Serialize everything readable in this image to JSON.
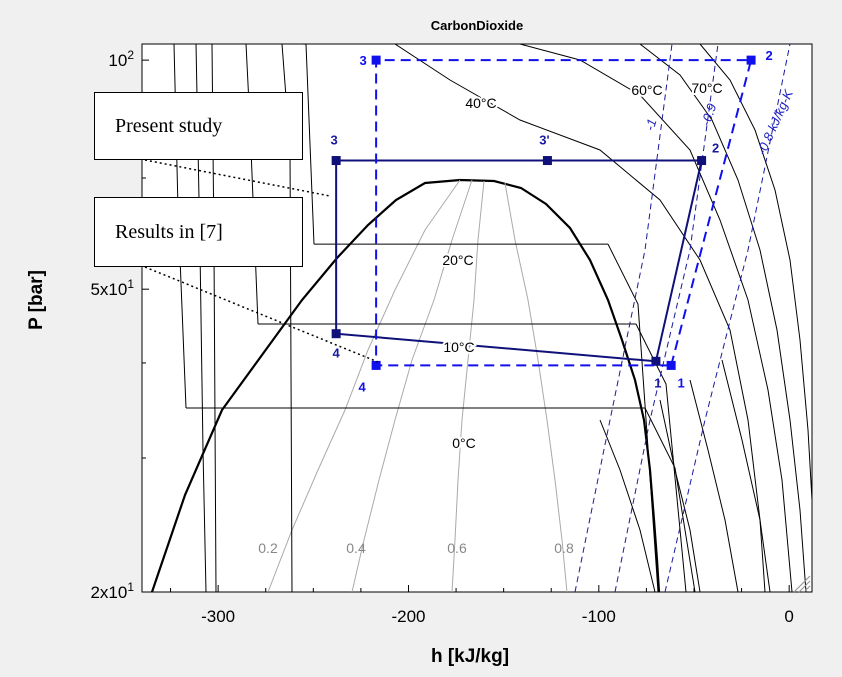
{
  "chart_data": {
    "type": "line",
    "title": "CarbonDioxide",
    "xlabel": "h [kJ/kg]",
    "ylabel": "P [bar]",
    "xlim": [
      -340,
      12
    ],
    "ylim": [
      20,
      105
    ],
    "yscale": "log",
    "x_ticks": [
      -300,
      -200,
      -100,
      0
    ],
    "x_tick_labels": [
      "-300",
      "-200",
      "-100",
      "0"
    ],
    "y_ticks": [
      20,
      50,
      100
    ],
    "y_tick_labels": [
      {
        "base": "2x10",
        "exp": "1"
      },
      {
        "base": "5x10",
        "exp": "1"
      },
      {
        "base": "10",
        "exp": "2"
      }
    ],
    "isotherms": [
      {
        "label": "0°C",
        "P": 34.9
      },
      {
        "label": "10°C",
        "P": 45.0
      },
      {
        "label": "20°C",
        "P": 57.3
      },
      {
        "label": "40°C"
      },
      {
        "label": "60°C"
      },
      {
        "label": "70°C"
      }
    ],
    "quality_labels": [
      "0.2",
      "0.4",
      "0.6",
      "0.8"
    ],
    "entropy_labels": [
      "-1",
      "-0.9",
      "-0.8 kJ/kg-K"
    ],
    "series": [
      {
        "name": "Present study",
        "style": "solid",
        "color": "#10107a",
        "points": [
          {
            "label": "1",
            "h": -70,
            "P": 40.2
          },
          {
            "label": "2",
            "h": -46,
            "P": 73.8
          },
          {
            "label": "3'",
            "h": -127,
            "P": 73.8
          },
          {
            "label": "3",
            "h": -238,
            "P": 73.8
          },
          {
            "label": "4",
            "h": -238,
            "P": 43.7
          },
          {
            "label": "1",
            "h": -70,
            "P": 40.2
          }
        ]
      },
      {
        "name": "Results in [7]",
        "style": "dashed",
        "color": "#1010ee",
        "points": [
          {
            "label": "1",
            "h": -62,
            "P": 39.7
          },
          {
            "label": "2",
            "h": -20,
            "P": 100
          },
          {
            "label": "3",
            "h": -217,
            "P": 100
          },
          {
            "label": "4",
            "h": -217,
            "P": 39.7
          },
          {
            "label": "1",
            "h": -62,
            "P": 39.7
          }
        ]
      }
    ],
    "annotations": [
      {
        "text": "Present study",
        "target": "3"
      },
      {
        "text": "Results in [7]",
        "target": "4"
      }
    ]
  }
}
